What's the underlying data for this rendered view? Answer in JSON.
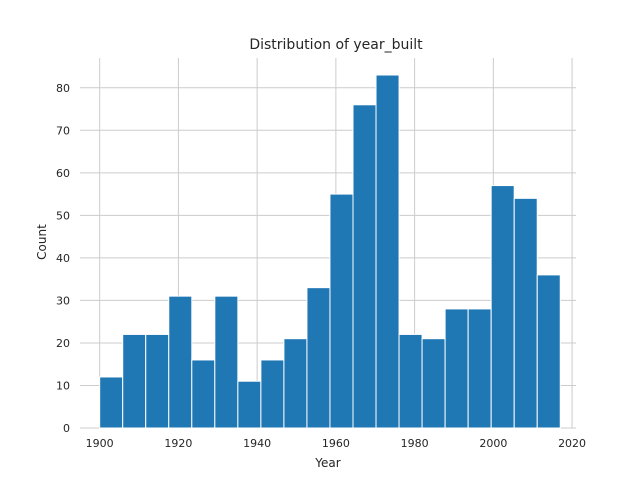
{
  "chart_data": {
    "type": "bar",
    "subtype": "histogram",
    "title": "Distribution of year_built",
    "xlabel": "Year",
    "ylabel": "Count",
    "bar_color": "#1f77b4",
    "grid": true,
    "xlim": [
      1895,
      2021
    ],
    "ylim": [
      0,
      87
    ],
    "x_ticks": [
      1900,
      1920,
      1940,
      1960,
      1980,
      2000,
      2020
    ],
    "y_ticks": [
      0,
      10,
      20,
      30,
      40,
      50,
      60,
      70,
      80
    ],
    "bins": [
      {
        "start": 1900.0,
        "end": 1905.85,
        "count": 12
      },
      {
        "start": 1905.85,
        "end": 1911.7,
        "count": 22
      },
      {
        "start": 1911.7,
        "end": 1917.55,
        "count": 22
      },
      {
        "start": 1917.55,
        "end": 1923.4,
        "count": 31
      },
      {
        "start": 1923.4,
        "end": 1929.25,
        "count": 16
      },
      {
        "start": 1929.25,
        "end": 1935.1,
        "count": 31
      },
      {
        "start": 1935.1,
        "end": 1940.95,
        "count": 11
      },
      {
        "start": 1940.95,
        "end": 1946.8,
        "count": 16
      },
      {
        "start": 1946.8,
        "end": 1952.65,
        "count": 21
      },
      {
        "start": 1952.65,
        "end": 1958.5,
        "count": 33
      },
      {
        "start": 1958.5,
        "end": 1964.35,
        "count": 55
      },
      {
        "start": 1964.35,
        "end": 1970.2,
        "count": 76
      },
      {
        "start": 1970.2,
        "end": 1976.05,
        "count": 83
      },
      {
        "start": 1976.05,
        "end": 1981.9,
        "count": 22
      },
      {
        "start": 1981.9,
        "end": 1987.75,
        "count": 21
      },
      {
        "start": 1987.75,
        "end": 1993.6,
        "count": 28
      },
      {
        "start": 1993.6,
        "end": 1999.45,
        "count": 28
      },
      {
        "start": 1999.45,
        "end": 2005.3,
        "count": 57
      },
      {
        "start": 2005.3,
        "end": 2011.15,
        "count": 54
      },
      {
        "start": 2011.15,
        "end": 2017.0,
        "count": 36
      }
    ]
  }
}
